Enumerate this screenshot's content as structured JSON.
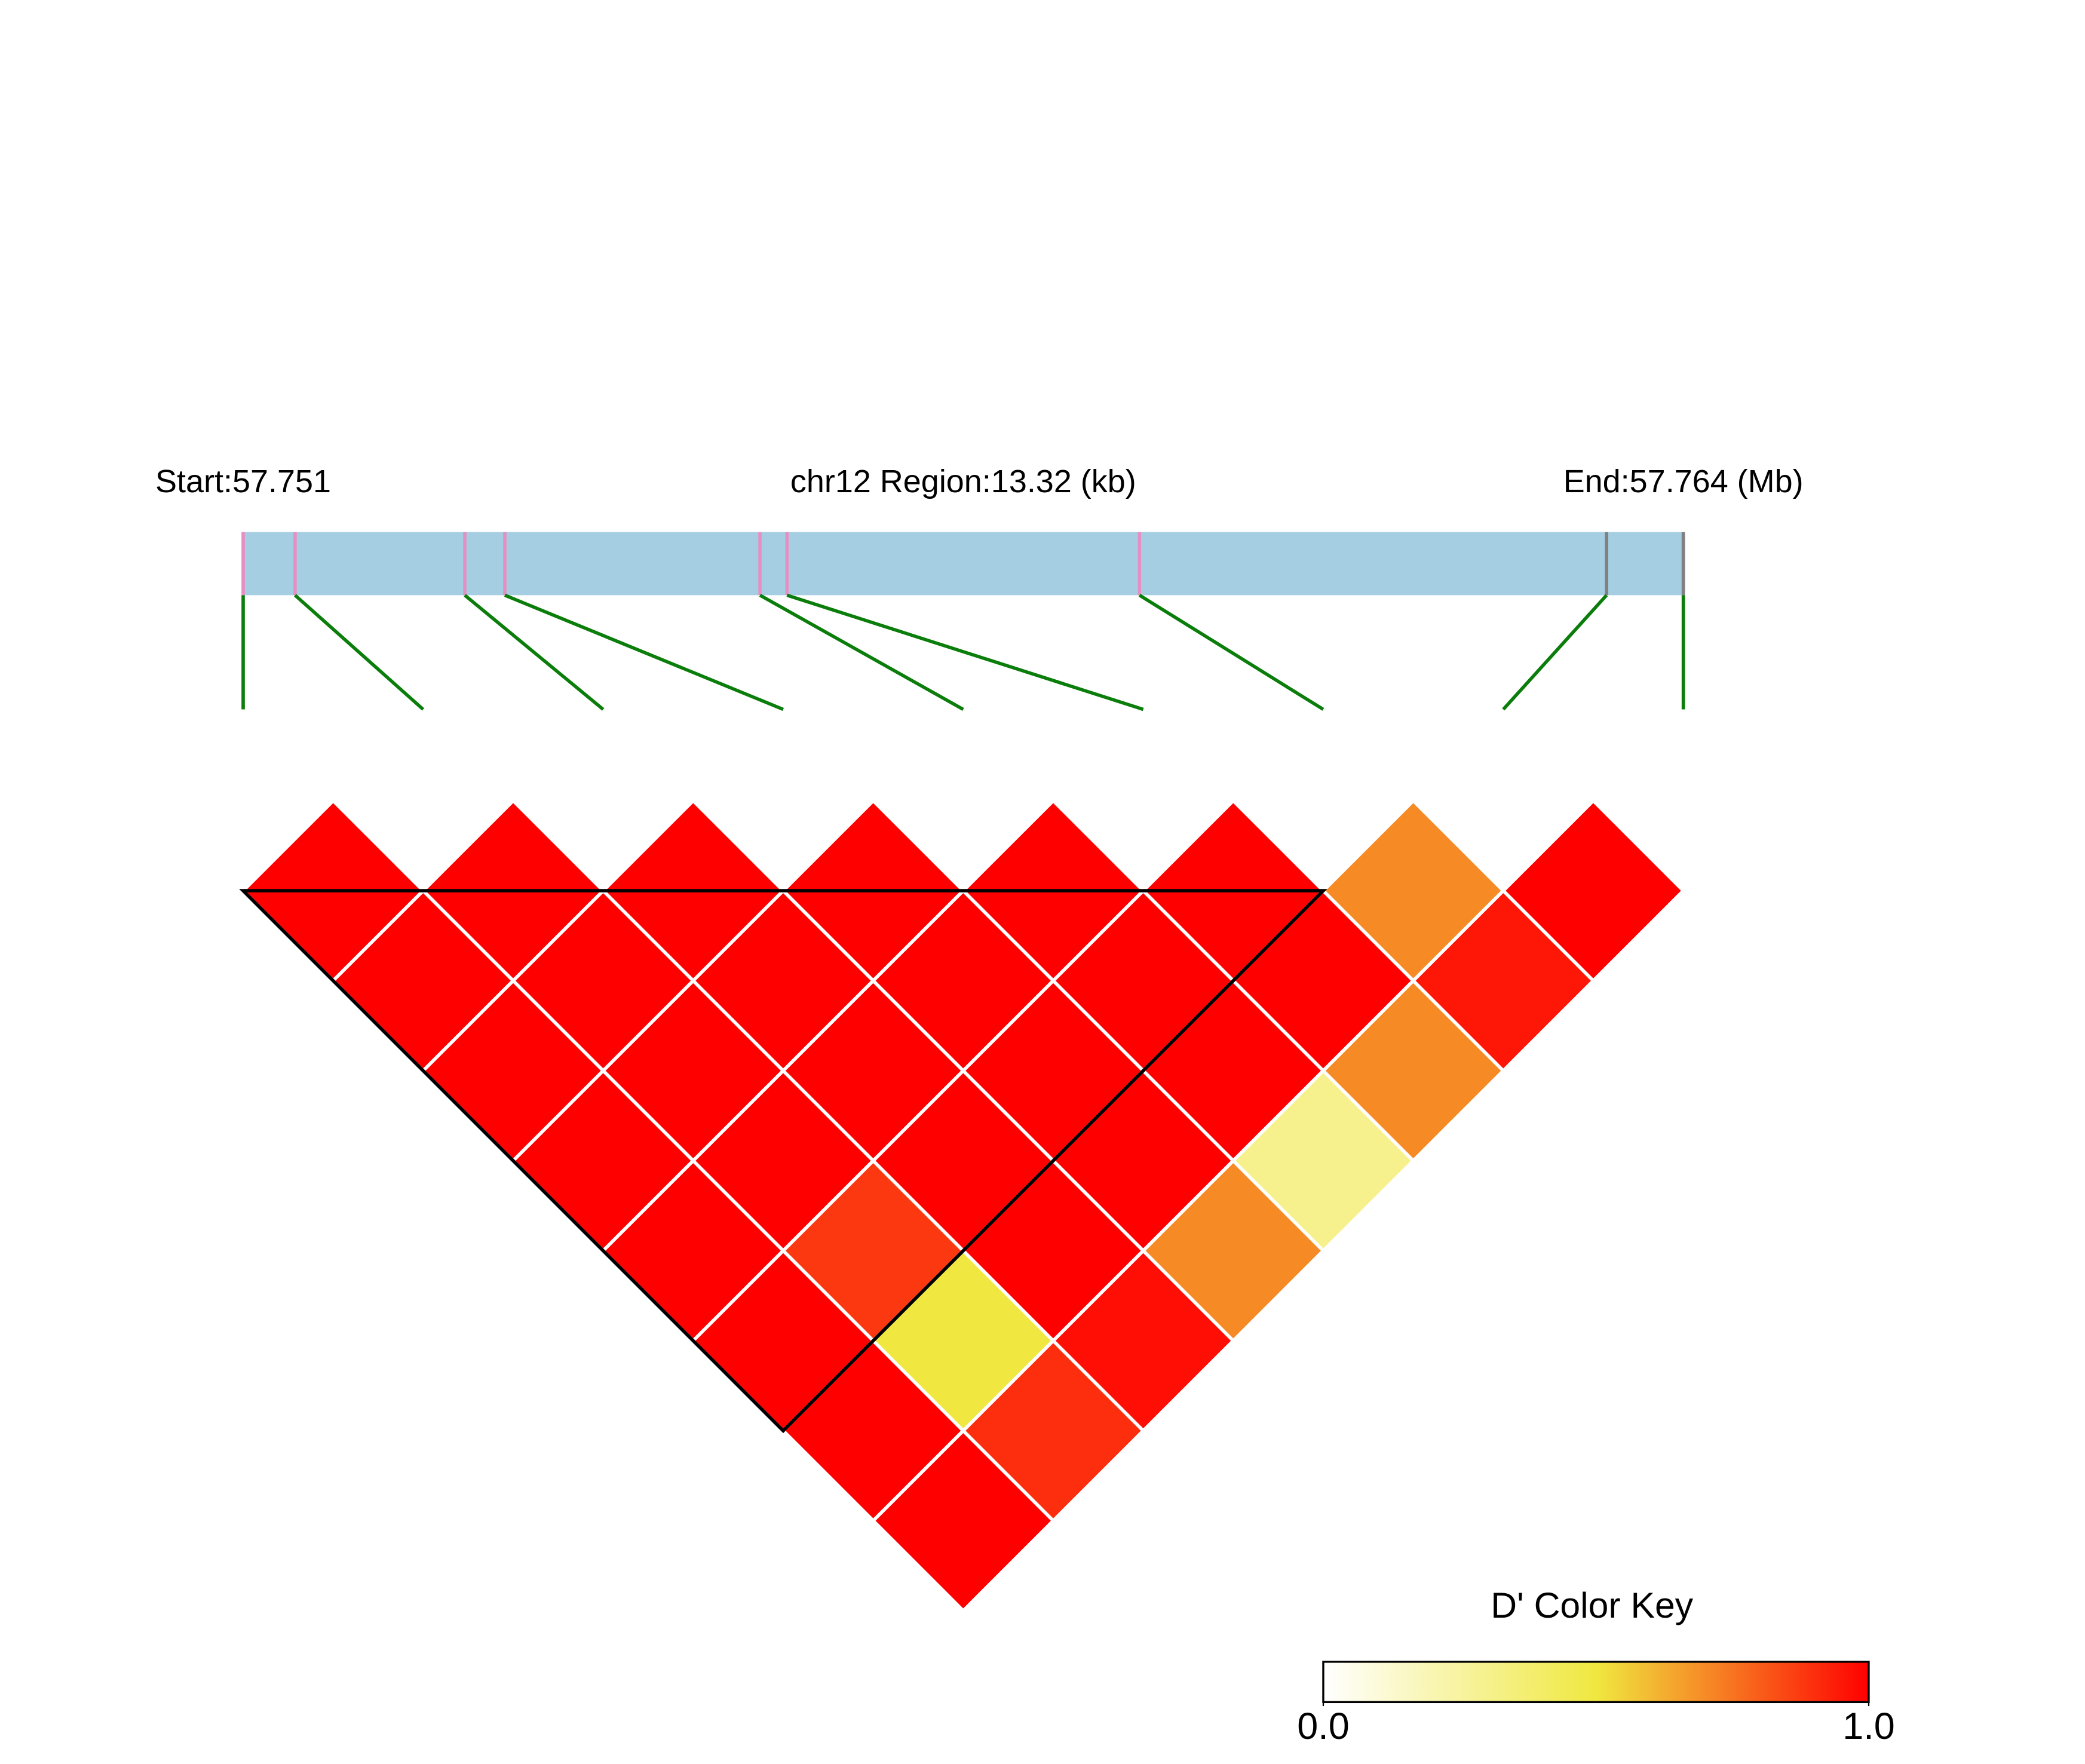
{
  "chart_data": {
    "type": "ld-heatmap",
    "region_start_label": "Start:57.751",
    "region_label": "chr12 Region:13.32 (kb)",
    "region_end_label": "End:57.764 (Mb)",
    "xlim": [
      57.751,
      57.76432
    ],
    "bar_color": "#a6cee3",
    "snp_positions": [
      57.751,
      57.75148,
      57.75305,
      57.75342,
      57.75578,
      57.75603,
      57.75929,
      57.76361,
      57.76432
    ],
    "snp_colors": [
      "#e68fc3",
      "#e68fc3",
      "#e68fc3",
      "#e68fc3",
      "#e68fc3",
      "#e68fc3",
      "#e68fc3",
      "#808080",
      "#808080"
    ],
    "connector_color": "#0a7d0a",
    "values": [
      [
        1,
        1,
        1,
        1,
        1,
        1,
        1,
        1
      ],
      [
        1,
        1,
        1,
        1,
        0.88,
        0.5,
        0.9
      ],
      [
        1,
        1,
        1,
        1,
        1,
        0.97
      ],
      [
        1,
        1,
        1,
        1,
        0.7
      ],
      [
        1,
        1,
        1,
        0.3
      ],
      [
        1,
        1,
        0.7
      ],
      [
        0.7,
        0.95
      ],
      [
        1
      ]
    ],
    "blocks": [
      [
        0,
        6
      ]
    ],
    "colorscale": [
      "#ffffff",
      "#f0e840",
      "#ff0000"
    ],
    "colorbar_title": "D' Color Key",
    "colorbar_lim": [
      0,
      1
    ],
    "colorbar_ticks": [
      {
        "value": 0,
        "label": "0.0"
      },
      {
        "value": 1,
        "label": "1.0"
      }
    ]
  }
}
